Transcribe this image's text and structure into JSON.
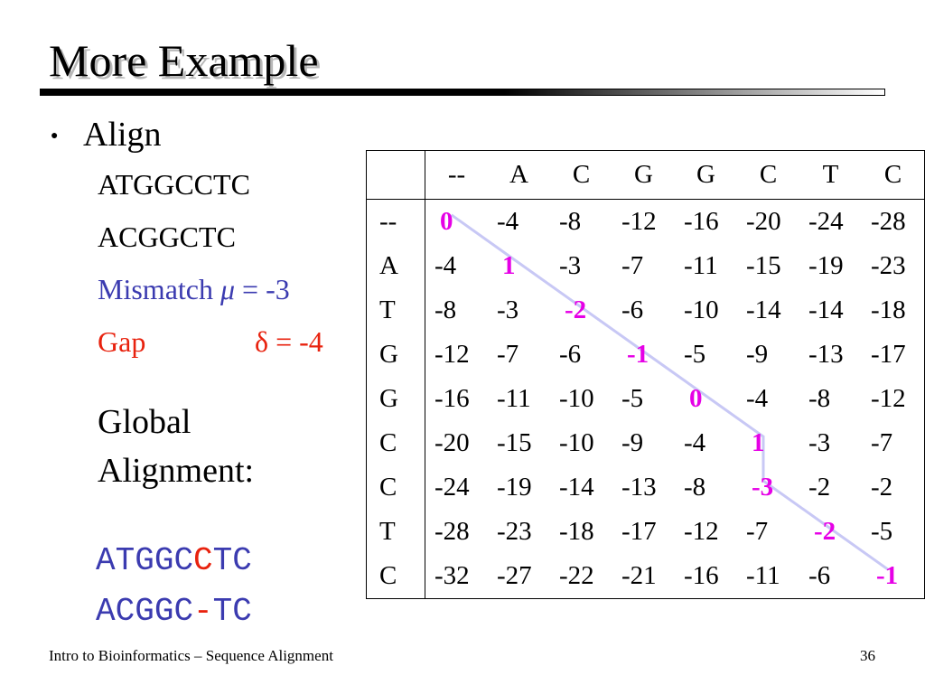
{
  "slide": {
    "title": "More Example",
    "bullet_text": "Align",
    "seq1": "ATGGCCTC",
    "seq2": "ACGGCTC",
    "mismatch_label": "Mismatch",
    "mismatch_symbol": "μ",
    "mismatch_value": "= -3",
    "gap_label": "Gap",
    "gap_symbol": "δ",
    "gap_value": "= -4",
    "global_line1": "Global",
    "global_line2": "Alignment:",
    "alignment_top": [
      "A",
      "T",
      "G",
      "G",
      "C",
      "C",
      "T",
      "C"
    ],
    "alignment_bottom": [
      "A",
      "C",
      "G",
      "G",
      "C",
      "-",
      "T",
      "C"
    ],
    "alignment_top_highlight": [
      5
    ],
    "alignment_bottom_highlight": [
      5
    ]
  },
  "table": {
    "columns": [
      "--",
      "A",
      "C",
      "G",
      "G",
      "C",
      "T",
      "C"
    ],
    "rows": [
      {
        "label": "--",
        "values": [
          "0",
          "-4",
          "-8",
          "-12",
          "-16",
          "-20",
          "-24",
          "-28"
        ],
        "path_col": 0
      },
      {
        "label": "A",
        "values": [
          "-4",
          "1",
          "-3",
          "-7",
          "-11",
          "-15",
          "-19",
          "-23"
        ],
        "path_col": 1
      },
      {
        "label": "T",
        "values": [
          "-8",
          "-3",
          "-2",
          "-6",
          "-10",
          "-14",
          "-14",
          "-18"
        ],
        "path_col": 2
      },
      {
        "label": "G",
        "values": [
          "-12",
          "-7",
          "-6",
          "-1",
          "-5",
          "-9",
          "-13",
          "-17"
        ],
        "path_col": 3
      },
      {
        "label": "G",
        "values": [
          "-16",
          "-11",
          "-10",
          "-5",
          "0",
          "-4",
          "-8",
          "-12"
        ],
        "path_col": 4
      },
      {
        "label": "C",
        "values": [
          "-20",
          "-15",
          "-10",
          "-9",
          "-4",
          "1",
          "-3",
          "-7"
        ],
        "path_col": 5
      },
      {
        "label": "C",
        "values": [
          "-24",
          "-19",
          "-14",
          "-13",
          "-8",
          "-3",
          "-2",
          "-2"
        ],
        "path_col": 5
      },
      {
        "label": "T",
        "values": [
          "-28",
          "-23",
          "-18",
          "-17",
          "-12",
          "-7",
          "-2",
          "-5"
        ],
        "path_col": 6
      },
      {
        "label": "C",
        "values": [
          "-32",
          "-27",
          "-22",
          "-21",
          "-16",
          "-11",
          "-6",
          "-1"
        ],
        "path_col": 7
      }
    ]
  },
  "footer": {
    "left": "Intro to Bioinformatics – Sequence Alignment",
    "page": "36"
  },
  "colors": {
    "mismatch": "#3b3bb0",
    "gap": "#e8220e",
    "path": "#e600e6",
    "traceback_line": "#c8c8f5"
  }
}
